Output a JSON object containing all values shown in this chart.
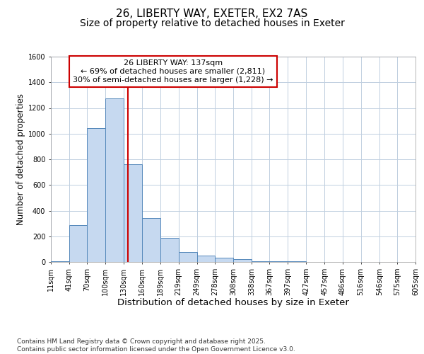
{
  "title1": "26, LIBERTY WAY, EXETER, EX2 7AS",
  "title2": "Size of property relative to detached houses in Exeter",
  "xlabel": "Distribution of detached houses by size in Exeter",
  "ylabel": "Number of detached properties",
  "bar_left_edges": [
    11,
    41,
    70,
    100,
    130,
    160,
    189,
    219,
    249,
    278,
    308,
    338,
    367,
    397,
    427,
    457,
    486,
    516,
    546,
    575
  ],
  "bar_widths": [
    30,
    29,
    30,
    30,
    30,
    29,
    30,
    30,
    29,
    30,
    30,
    29,
    30,
    30,
    30,
    29,
    30,
    30,
    29,
    30
  ],
  "bar_heights": [
    8,
    285,
    1045,
    1275,
    760,
    340,
    185,
    80,
    50,
    35,
    20,
    8,
    3,
    3,
    2,
    2,
    2,
    2,
    2,
    2
  ],
  "bar_color": "#c6d9f0",
  "bar_edge_color": "#5588bb",
  "bar_linewidth": 0.7,
  "grid_color": "#c0cfe0",
  "figure_bg": "#ffffff",
  "axes_bg": "#ffffff",
  "vline_x": 137,
  "vline_color": "#cc0000",
  "vline_lw": 1.5,
  "annotation_text_line1": "26 LIBERTY WAY: 137sqm",
  "annotation_text_line2": "← 69% of detached houses are smaller (2,811)",
  "annotation_text_line3": "30% of semi-detached houses are larger (1,228) →",
  "annotation_box_facecolor": "#ffffff",
  "annotation_box_edgecolor": "#cc0000",
  "xlim": [
    11,
    605
  ],
  "ylim": [
    0,
    1600
  ],
  "yticks": [
    0,
    200,
    400,
    600,
    800,
    1000,
    1200,
    1400,
    1600
  ],
  "xtick_labels": [
    "11sqm",
    "41sqm",
    "70sqm",
    "100sqm",
    "130sqm",
    "160sqm",
    "189sqm",
    "219sqm",
    "249sqm",
    "278sqm",
    "308sqm",
    "338sqm",
    "367sqm",
    "397sqm",
    "427sqm",
    "457sqm",
    "486sqm",
    "516sqm",
    "546sqm",
    "575sqm",
    "605sqm"
  ],
  "xtick_positions": [
    11,
    41,
    70,
    100,
    130,
    160,
    189,
    219,
    249,
    278,
    308,
    338,
    367,
    397,
    427,
    457,
    486,
    516,
    546,
    575,
    605
  ],
  "footnote": "Contains HM Land Registry data © Crown copyright and database right 2025.\nContains public sector information licensed under the Open Government Licence v3.0.",
  "title1_fontsize": 11,
  "title2_fontsize": 10,
  "xlabel_fontsize": 9.5,
  "ylabel_fontsize": 8.5,
  "tick_fontsize": 7,
  "annotation_fontsize": 8,
  "footnote_fontsize": 6.5
}
